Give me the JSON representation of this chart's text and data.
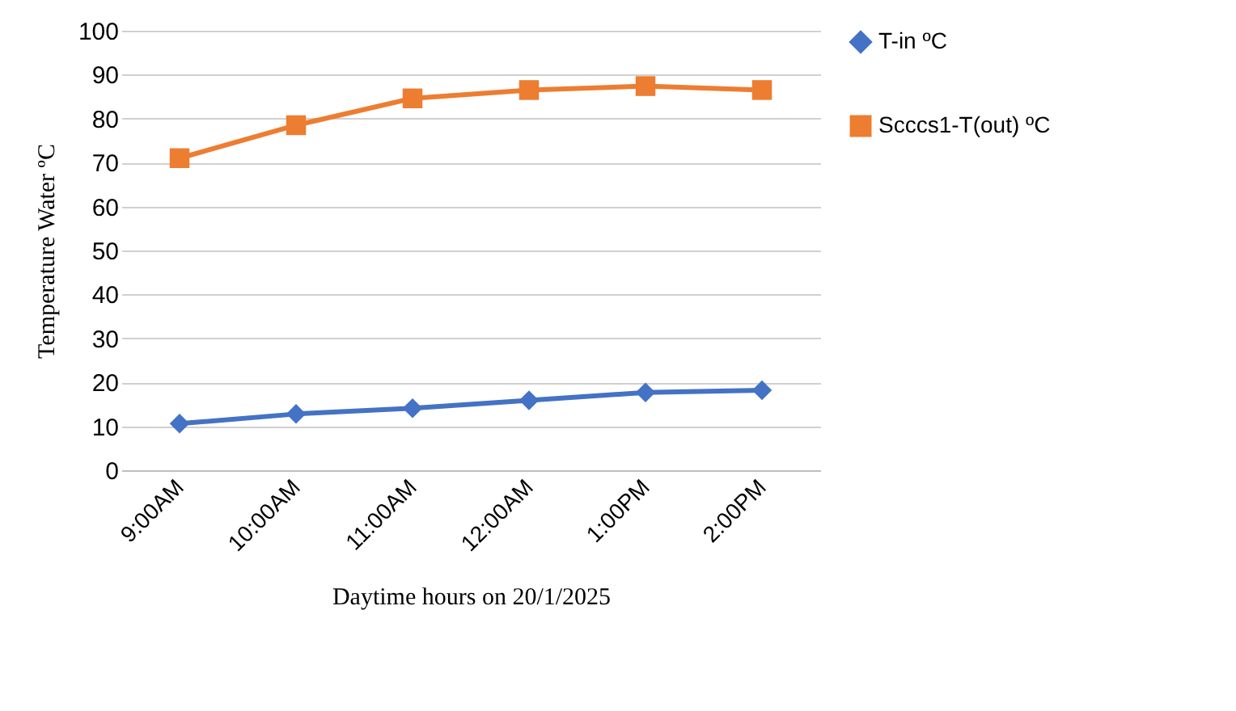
{
  "chart_data": {
    "type": "line",
    "xlabel": "Daytime hours on 20/1/2025",
    "ylabel": "Temperature  Water ºC",
    "categories": [
      "9:00AM",
      "10:00AM",
      "11:00AM",
      "12:00AM",
      "1:00PM",
      "2:00PM"
    ],
    "series": [
      {
        "name": "T-in ºC",
        "color": "#4472c4",
        "marker": "diamond",
        "values": [
          10.6,
          12.8,
          14.1,
          15.9,
          17.7,
          18.2
        ]
      },
      {
        "name": "Scccs1-T(out) ºC",
        "color": "#ed7d31",
        "marker": "square",
        "values": [
          71,
          78.5,
          84.6,
          86.5,
          87.4,
          86.5
        ]
      }
    ],
    "ylim": [
      0,
      100
    ],
    "yticks": [
      0,
      10,
      20,
      30,
      40,
      50,
      60,
      70,
      80,
      90,
      100
    ],
    "grid": "y",
    "legend": "right",
    "line_style": "solid"
  }
}
